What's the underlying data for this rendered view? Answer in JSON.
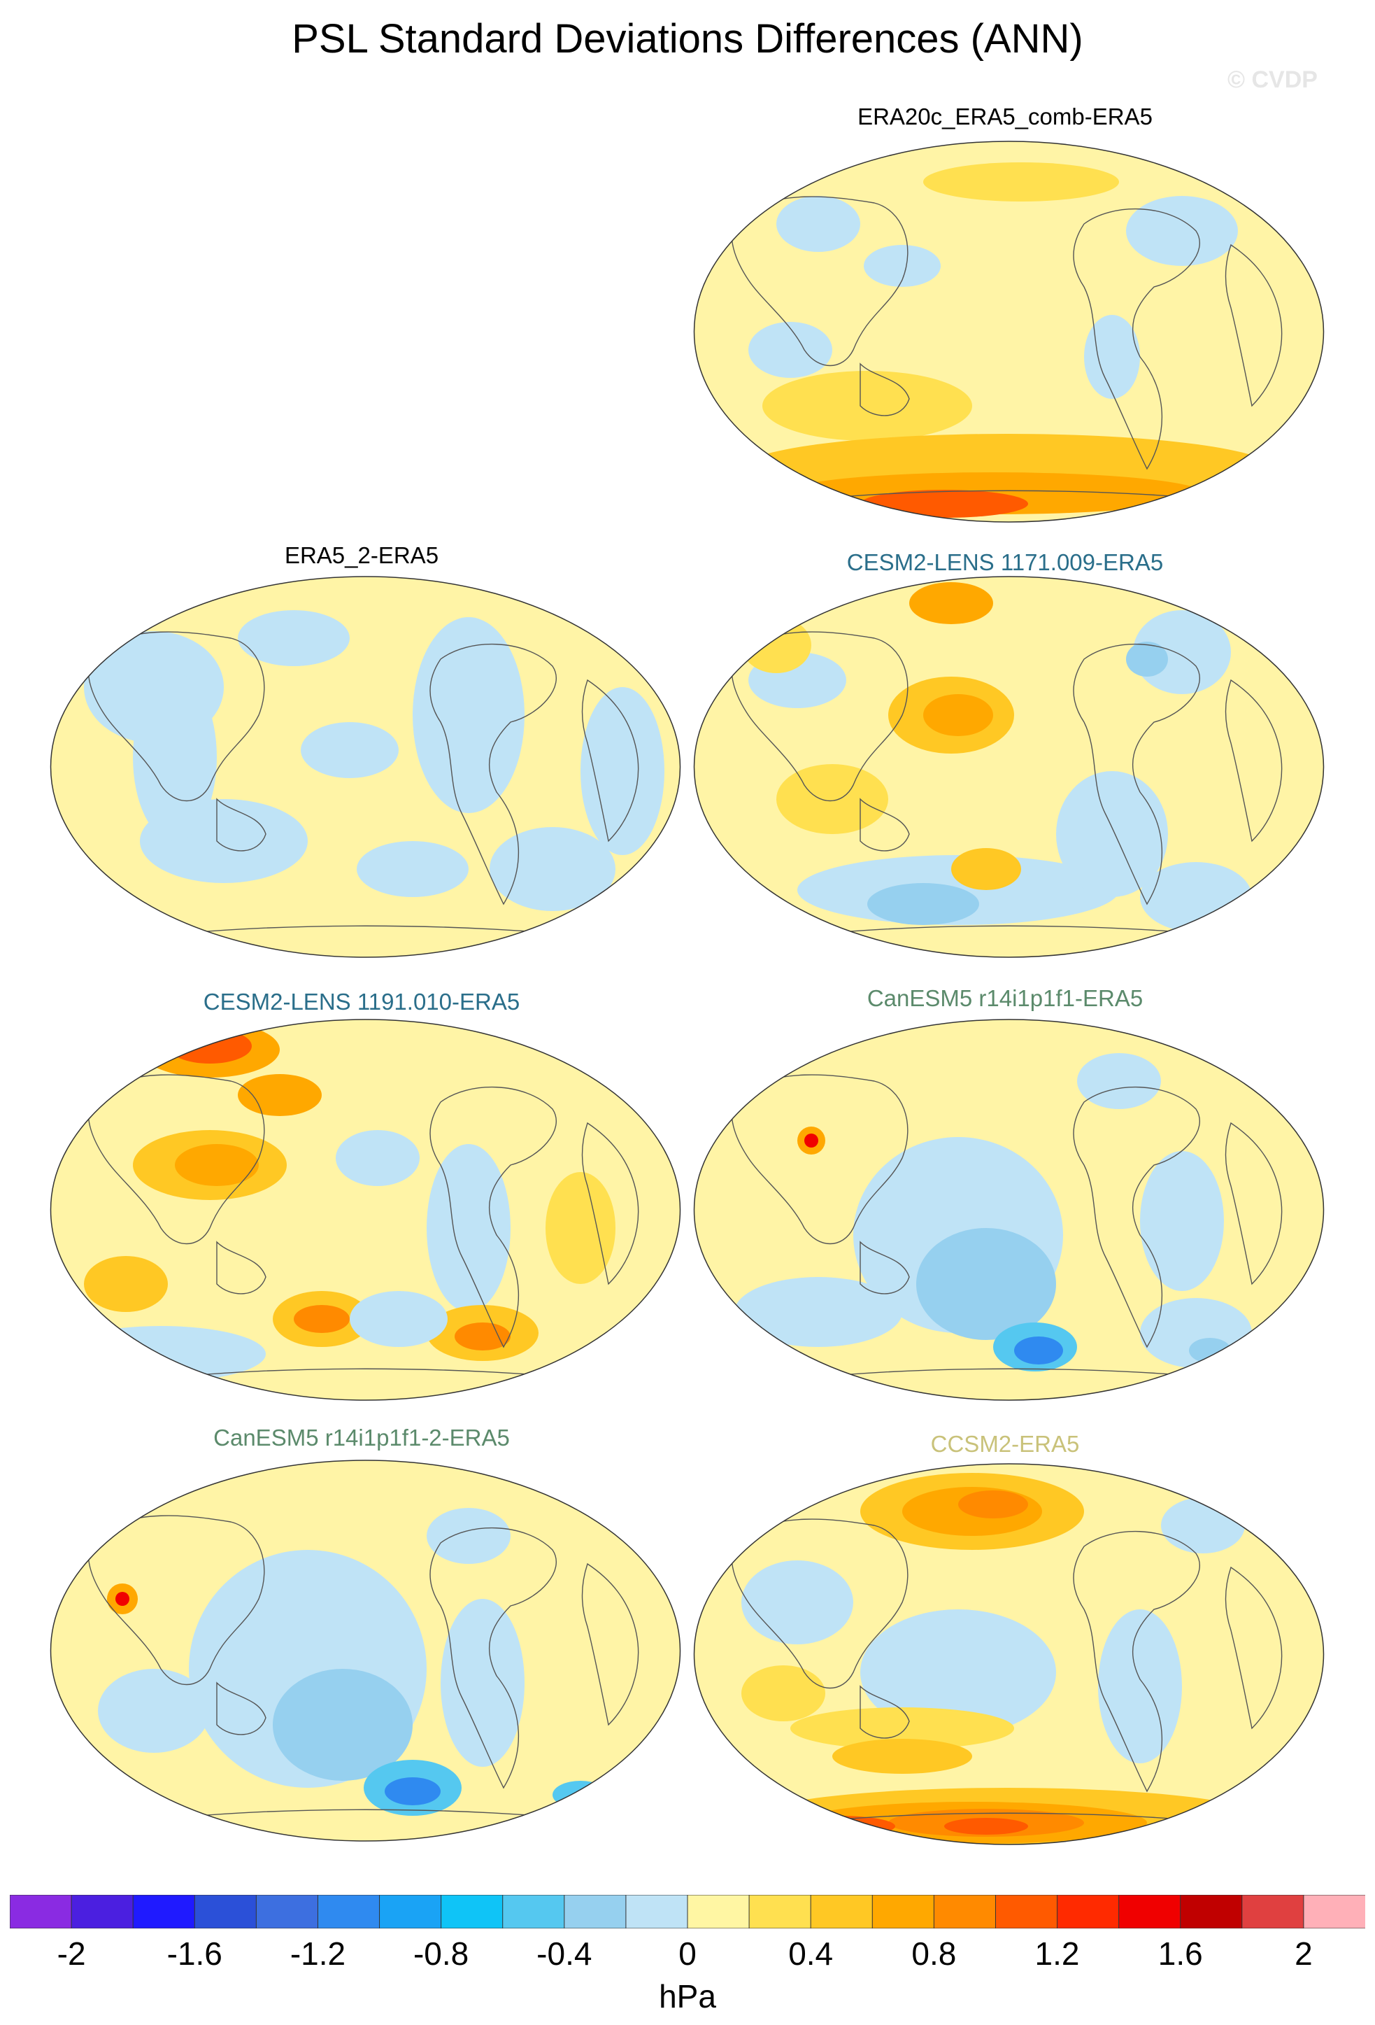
{
  "title": "PSL Standard Deviations Differences (ANN)",
  "watermark": "© CVDP",
  "panels": [
    {
      "id": "era20c",
      "label": "ERA20c_ERA5_comb-ERA5",
      "color": "#000000",
      "base": "#fff4a6",
      "pattern": 0
    },
    {
      "id": "era5_2",
      "label": "ERA5_2-ERA5",
      "color": "#000000",
      "base": "#fff4a6",
      "pattern": 1
    },
    {
      "id": "cesm1171",
      "label": "CESM2-LENS 1171.009-ERA5",
      "color": "#2a6e8a",
      "base": "#fff4a6",
      "pattern": 2
    },
    {
      "id": "cesm1191",
      "label": "CESM2-LENS 1191.010-ERA5",
      "color": "#2a6e8a",
      "base": "#fff4a6",
      "pattern": 3
    },
    {
      "id": "canesm",
      "label": "CanESM5 r14i1p1f1-ERA5",
      "color": "#5b8a6b",
      "base": "#fff4a6",
      "pattern": 4
    },
    {
      "id": "canesm2",
      "label": "CanESM5 r14i1p1f1-2-ERA5",
      "color": "#5b8a6b",
      "base": "#fff4a6",
      "pattern": 5
    },
    {
      "id": "ccsm2",
      "label": "CCSM2-ERA5",
      "color": "#c9c27a",
      "base": "#fff4a6",
      "pattern": 6
    }
  ],
  "colorbar": {
    "unit": "hPa",
    "ticks": [
      "-2",
      "-1.6",
      "-1.2",
      "-0.8",
      "-0.4",
      "0",
      "0.4",
      "0.8",
      "1.2",
      "1.6",
      "2"
    ],
    "colors": [
      "#8a2be2",
      "#4b1fe0",
      "#1f1aff",
      "#2b50d8",
      "#3d6fe0",
      "#2f8af0",
      "#1aa3f5",
      "#0fc4f7",
      "#55c8f0",
      "#96d0ef",
      "#bfe3f6",
      "#fff6a3",
      "#ffe050",
      "#ffc824",
      "#ffa800",
      "#ff8a00",
      "#ff5a00",
      "#ff2a00",
      "#f00000",
      "#c00000",
      "#e04040",
      "#ffb0b8"
    ]
  }
}
